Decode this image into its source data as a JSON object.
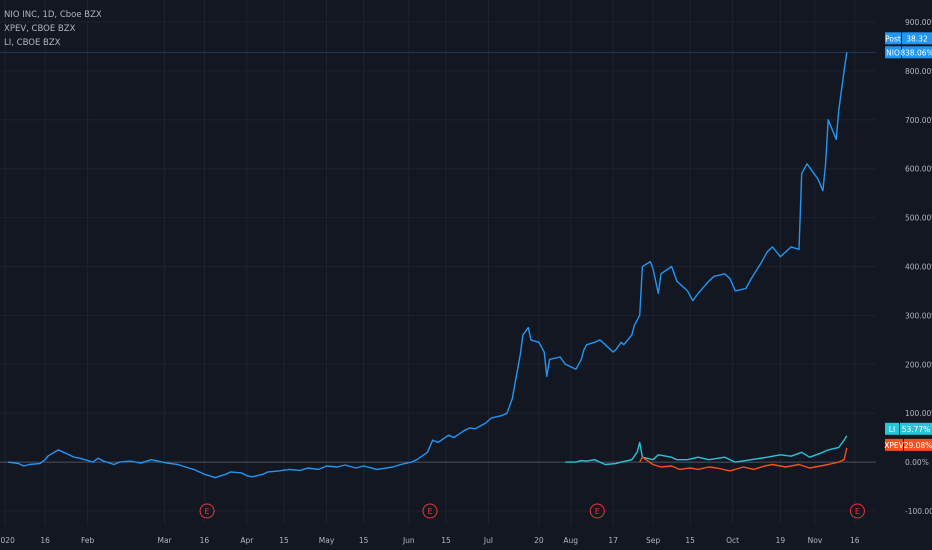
{
  "legend": [
    {
      "label": "NIO INC, 1D, Cboe BZX"
    },
    {
      "label": "XPEV, CBOE BZX"
    },
    {
      "label": "LI, CBOE BZX"
    }
  ],
  "colors": {
    "background": "#131722",
    "grid": "#1e2230",
    "axis_text": "#b2b5be",
    "NIO": "#2196f3",
    "LI": "#26c6da",
    "XPEV": "#f4511e",
    "earnings": "#e53935"
  },
  "chart_data": {
    "type": "line",
    "y_unit": "percent change",
    "ylim": [
      -100,
      900
    ],
    "y_ticks": [
      "900.00%",
      "800.00%",
      "700.00%",
      "600.00%",
      "500.00%",
      "400.00%",
      "300.00%",
      "200.00%",
      "100.00%",
      "0.00%",
      "-100.00%"
    ],
    "x_ticks": [
      "2020",
      "16",
      "Feb",
      "Mar",
      "16",
      "Apr",
      "15",
      "May",
      "15",
      "Jun",
      "15",
      "Jul",
      "20",
      "Aug",
      "17",
      "Sep",
      "15",
      "Oct",
      "19",
      "Nov",
      "16"
    ],
    "grid": true,
    "zero_line": true,
    "earnings_marker_label": "E",
    "earnings_dates": [
      "2020-03-17",
      "2020-06-09",
      "2020-08-11",
      "2020-11-17"
    ],
    "series": [
      {
        "name": "NIO",
        "color": "#2196f3",
        "points": [
          [
            "2020-01-02",
            0
          ],
          [
            "2020-01-06",
            -3
          ],
          [
            "2020-01-08",
            -8
          ],
          [
            "2020-01-10",
            -5
          ],
          [
            "2020-01-14",
            -3
          ],
          [
            "2020-01-16",
            5
          ],
          [
            "2020-01-17",
            12
          ],
          [
            "2020-01-21",
            25
          ],
          [
            "2020-01-23",
            20
          ],
          [
            "2020-01-27",
            10
          ],
          [
            "2020-01-29",
            8
          ],
          [
            "2020-02-03",
            0
          ],
          [
            "2020-02-05",
            8
          ],
          [
            "2020-02-07",
            2
          ],
          [
            "2020-02-11",
            -5
          ],
          [
            "2020-02-13",
            0
          ],
          [
            "2020-02-17",
            2
          ],
          [
            "2020-02-21",
            -2
          ],
          [
            "2020-02-25",
            5
          ],
          [
            "2020-03-02",
            -2
          ],
          [
            "2020-03-06",
            -5
          ],
          [
            "2020-03-10",
            -12
          ],
          [
            "2020-03-12",
            -15
          ],
          [
            "2020-03-16",
            -25
          ],
          [
            "2020-03-18",
            -28
          ],
          [
            "2020-03-20",
            -32
          ],
          [
            "2020-03-24",
            -25
          ],
          [
            "2020-03-26",
            -20
          ],
          [
            "2020-03-30",
            -22
          ],
          [
            "2020-04-01",
            -28
          ],
          [
            "2020-04-03",
            -30
          ],
          [
            "2020-04-07",
            -25
          ],
          [
            "2020-04-09",
            -20
          ],
          [
            "2020-04-13",
            -18
          ],
          [
            "2020-04-17",
            -15
          ],
          [
            "2020-04-21",
            -17
          ],
          [
            "2020-04-24",
            -12
          ],
          [
            "2020-04-28",
            -15
          ],
          [
            "2020-05-01",
            -8
          ],
          [
            "2020-05-05",
            -10
          ],
          [
            "2020-05-08",
            -6
          ],
          [
            "2020-05-12",
            -12
          ],
          [
            "2020-05-15",
            -8
          ],
          [
            "2020-05-20",
            -15
          ],
          [
            "2020-05-26",
            -10
          ],
          [
            "2020-05-29",
            -5
          ],
          [
            "2020-06-02",
            0
          ],
          [
            "2020-06-04",
            5
          ],
          [
            "2020-06-08",
            20
          ],
          [
            "2020-06-10",
            45
          ],
          [
            "2020-06-12",
            40
          ],
          [
            "2020-06-16",
            55
          ],
          [
            "2020-06-18",
            50
          ],
          [
            "2020-06-22",
            65
          ],
          [
            "2020-06-24",
            70
          ],
          [
            "2020-06-26",
            68
          ],
          [
            "2020-06-30",
            80
          ],
          [
            "2020-07-02",
            90
          ],
          [
            "2020-07-06",
            95
          ],
          [
            "2020-07-08",
            100
          ],
          [
            "2020-07-10",
            130
          ],
          [
            "2020-07-13",
            220
          ],
          [
            "2020-07-14",
            260
          ],
          [
            "2020-07-16",
            275
          ],
          [
            "2020-07-17",
            250
          ],
          [
            "2020-07-20",
            245
          ],
          [
            "2020-07-22",
            225
          ],
          [
            "2020-07-23",
            175
          ],
          [
            "2020-07-24",
            210
          ],
          [
            "2020-07-28",
            215
          ],
          [
            "2020-07-30",
            200
          ],
          [
            "2020-08-03",
            190
          ],
          [
            "2020-08-05",
            210
          ],
          [
            "2020-08-06",
            230
          ],
          [
            "2020-08-07",
            240
          ],
          [
            "2020-08-10",
            245
          ],
          [
            "2020-08-12",
            250
          ],
          [
            "2020-08-14",
            240
          ],
          [
            "2020-08-17",
            225
          ],
          [
            "2020-08-18",
            230
          ],
          [
            "2020-08-20",
            245
          ],
          [
            "2020-08-21",
            240
          ],
          [
            "2020-08-24",
            260
          ],
          [
            "2020-08-25",
            280
          ],
          [
            "2020-08-27",
            300
          ],
          [
            "2020-08-28",
            400
          ],
          [
            "2020-08-31",
            410
          ],
          [
            "2020-09-01",
            395
          ],
          [
            "2020-09-03",
            345
          ],
          [
            "2020-09-04",
            385
          ],
          [
            "2020-09-08",
            400
          ],
          [
            "2020-09-10",
            370
          ],
          [
            "2020-09-14",
            350
          ],
          [
            "2020-09-16",
            330
          ],
          [
            "2020-09-18",
            345
          ],
          [
            "2020-09-22",
            370
          ],
          [
            "2020-09-24",
            380
          ],
          [
            "2020-09-28",
            385
          ],
          [
            "2020-09-30",
            375
          ],
          [
            "2020-10-02",
            350
          ],
          [
            "2020-10-06",
            355
          ],
          [
            "2020-10-08",
            375
          ],
          [
            "2020-10-12",
            410
          ],
          [
            "2020-10-14",
            430
          ],
          [
            "2020-10-16",
            440
          ],
          [
            "2020-10-19",
            420
          ],
          [
            "2020-10-21",
            430
          ],
          [
            "2020-10-23",
            440
          ],
          [
            "2020-10-26",
            435
          ],
          [
            "2020-10-27",
            590
          ],
          [
            "2020-10-29",
            610
          ],
          [
            "2020-11-02",
            580
          ],
          [
            "2020-11-04",
            555
          ],
          [
            "2020-11-05",
            610
          ],
          [
            "2020-11-06",
            700
          ],
          [
            "2020-11-09",
            660
          ],
          [
            "2020-11-10",
            720
          ],
          [
            "2020-11-12",
            800
          ],
          [
            "2020-11-13",
            838.06
          ]
        ]
      },
      {
        "name": "LI",
        "color": "#26c6da",
        "points": [
          [
            "2020-07-30",
            0
          ],
          [
            "2020-08-03",
            0
          ],
          [
            "2020-08-05",
            3
          ],
          [
            "2020-08-07",
            2
          ],
          [
            "2020-08-10",
            5
          ],
          [
            "2020-08-12",
            0
          ],
          [
            "2020-08-14",
            -5
          ],
          [
            "2020-08-18",
            -3
          ],
          [
            "2020-08-20",
            0
          ],
          [
            "2020-08-24",
            5
          ],
          [
            "2020-08-26",
            20
          ],
          [
            "2020-08-27",
            40
          ],
          [
            "2020-08-28",
            10
          ],
          [
            "2020-09-01",
            5
          ],
          [
            "2020-09-03",
            15
          ],
          [
            "2020-09-08",
            10
          ],
          [
            "2020-09-10",
            5
          ],
          [
            "2020-09-14",
            5
          ],
          [
            "2020-09-18",
            10
          ],
          [
            "2020-09-22",
            5
          ],
          [
            "2020-09-28",
            10
          ],
          [
            "2020-10-02",
            0
          ],
          [
            "2020-10-08",
            5
          ],
          [
            "2020-10-14",
            10
          ],
          [
            "2020-10-19",
            15
          ],
          [
            "2020-10-23",
            12
          ],
          [
            "2020-10-27",
            20
          ],
          [
            "2020-10-30",
            10
          ],
          [
            "2020-11-03",
            18
          ],
          [
            "2020-11-06",
            25
          ],
          [
            "2020-11-10",
            30
          ],
          [
            "2020-11-12",
            45
          ],
          [
            "2020-11-13",
            53.77
          ]
        ]
      },
      {
        "name": "XPEV",
        "color": "#f4511e",
        "points": [
          [
            "2020-08-27",
            0
          ],
          [
            "2020-08-28",
            10
          ],
          [
            "2020-09-01",
            -5
          ],
          [
            "2020-09-04",
            -10
          ],
          [
            "2020-09-08",
            -8
          ],
          [
            "2020-09-11",
            -15
          ],
          [
            "2020-09-15",
            -12
          ],
          [
            "2020-09-18",
            -15
          ],
          [
            "2020-09-22",
            -10
          ],
          [
            "2020-09-25",
            -12
          ],
          [
            "2020-09-30",
            -18
          ],
          [
            "2020-10-05",
            -10
          ],
          [
            "2020-10-09",
            -15
          ],
          [
            "2020-10-13",
            -8
          ],
          [
            "2020-10-16",
            -5
          ],
          [
            "2020-10-21",
            -10
          ],
          [
            "2020-10-26",
            -5
          ],
          [
            "2020-10-30",
            -12
          ],
          [
            "2020-11-03",
            -8
          ],
          [
            "2020-11-06",
            -5
          ],
          [
            "2020-11-10",
            0
          ],
          [
            "2020-11-12",
            5
          ],
          [
            "2020-11-13",
            29.08
          ]
        ]
      }
    ]
  },
  "price_badges": [
    {
      "key": "Post",
      "value": "38.32",
      "color": "#2196f3"
    },
    {
      "key": "NIO",
      "value": "838.06%",
      "color": "#2196f3"
    },
    {
      "key": "LI",
      "value": "53.77%",
      "color": "#26c6da"
    },
    {
      "key": "XPEV",
      "value": "29.08%",
      "color": "#f4511e"
    }
  ]
}
